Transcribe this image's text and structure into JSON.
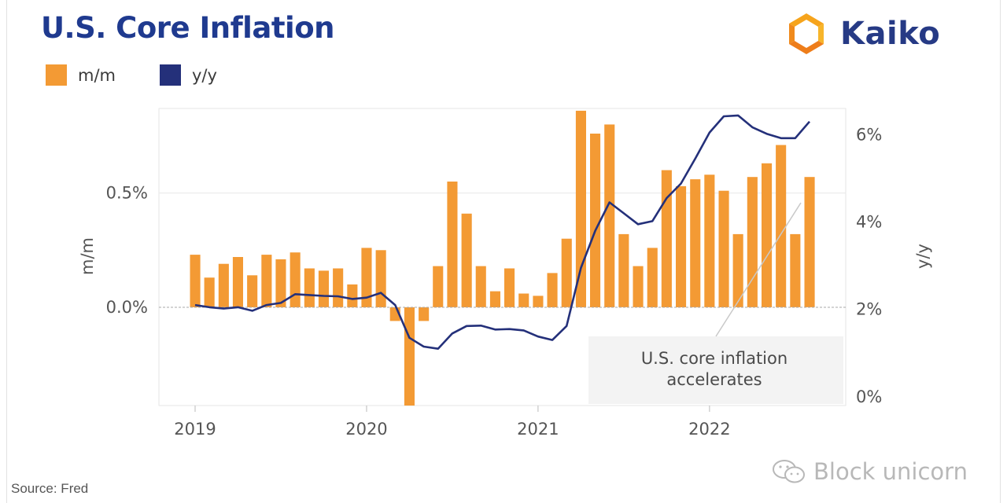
{
  "header": {
    "title": "U.S. Core Inflation"
  },
  "legend": [
    {
      "label": "m/m",
      "color": "#f39a34"
    },
    {
      "label": "y/y",
      "color": "#24307a"
    }
  ],
  "brand": {
    "name": "Kaiko",
    "icon": "kaiko-logo-icon"
  },
  "watermark": {
    "text": "Block unicorn",
    "icon": "wechat-icon"
  },
  "source": {
    "text": "Source: Fred"
  },
  "chart_data": {
    "type": "bar",
    "title": "U.S. Core Inflation",
    "grid": true,
    "legend_position": "top-left",
    "y_left": {
      "label": "m/m",
      "ticks": [
        "0.0%",
        "0.5%"
      ],
      "tick_values": [
        0,
        0.5
      ],
      "range": [
        -0.43,
        0.87
      ]
    },
    "y_right": {
      "label": "y/y",
      "ticks": [
        "0%",
        "2%",
        "4%",
        "6%"
      ],
      "tick_values": [
        0,
        2,
        4,
        6
      ],
      "range": [
        -0.2,
        6.6
      ]
    },
    "x_axis": {
      "ticks": [
        "2019",
        "2020",
        "2021",
        "2022"
      ],
      "range": [
        "2019-01",
        "2022-08"
      ]
    },
    "months": [
      "2019-01",
      "2019-02",
      "2019-03",
      "2019-04",
      "2019-05",
      "2019-06",
      "2019-07",
      "2019-08",
      "2019-09",
      "2019-10",
      "2019-11",
      "2019-12",
      "2020-01",
      "2020-02",
      "2020-03",
      "2020-04",
      "2020-05",
      "2020-06",
      "2020-07",
      "2020-08",
      "2020-09",
      "2020-10",
      "2020-11",
      "2020-12",
      "2021-01",
      "2021-02",
      "2021-03",
      "2021-04",
      "2021-05",
      "2021-06",
      "2021-07",
      "2021-08",
      "2021-09",
      "2021-10",
      "2021-11",
      "2021-12",
      "2022-01",
      "2022-02",
      "2022-03",
      "2022-04",
      "2022-05",
      "2022-06",
      "2022-07",
      "2022-08"
    ],
    "series": [
      {
        "name": "m/m",
        "type": "bar",
        "axis": "left",
        "color": "#f39a34",
        "values": [
          0.23,
          0.13,
          0.19,
          0.22,
          0.14,
          0.23,
          0.21,
          0.24,
          0.17,
          0.16,
          0.17,
          0.1,
          0.26,
          0.25,
          -0.06,
          -0.43,
          -0.06,
          0.18,
          0.55,
          0.41,
          0.18,
          0.07,
          0.17,
          0.06,
          0.05,
          0.15,
          0.3,
          0.86,
          0.76,
          0.8,
          0.32,
          0.18,
          0.26,
          0.6,
          0.53,
          0.56,
          0.58,
          0.51,
          0.32,
          0.57,
          0.63,
          0.71,
          0.32,
          0.57
        ]
      },
      {
        "name": "y/y",
        "type": "line",
        "axis": "right",
        "color": "#24307a",
        "values": [
          2.1,
          2.05,
          2.02,
          2.05,
          1.97,
          2.1,
          2.15,
          2.35,
          2.33,
          2.31,
          2.3,
          2.24,
          2.27,
          2.38,
          2.1,
          1.35,
          1.15,
          1.1,
          1.45,
          1.62,
          1.63,
          1.54,
          1.55,
          1.52,
          1.38,
          1.3,
          1.62,
          2.95,
          3.8,
          4.45,
          4.2,
          3.95,
          4.02,
          4.55,
          4.88,
          5.45,
          6.05,
          6.42,
          6.44,
          6.17,
          6.02,
          5.92,
          5.92,
          6.3
        ]
      }
    ],
    "annotation": {
      "text_lines": [
        "U.S. core inflation",
        "accelerates"
      ]
    }
  }
}
